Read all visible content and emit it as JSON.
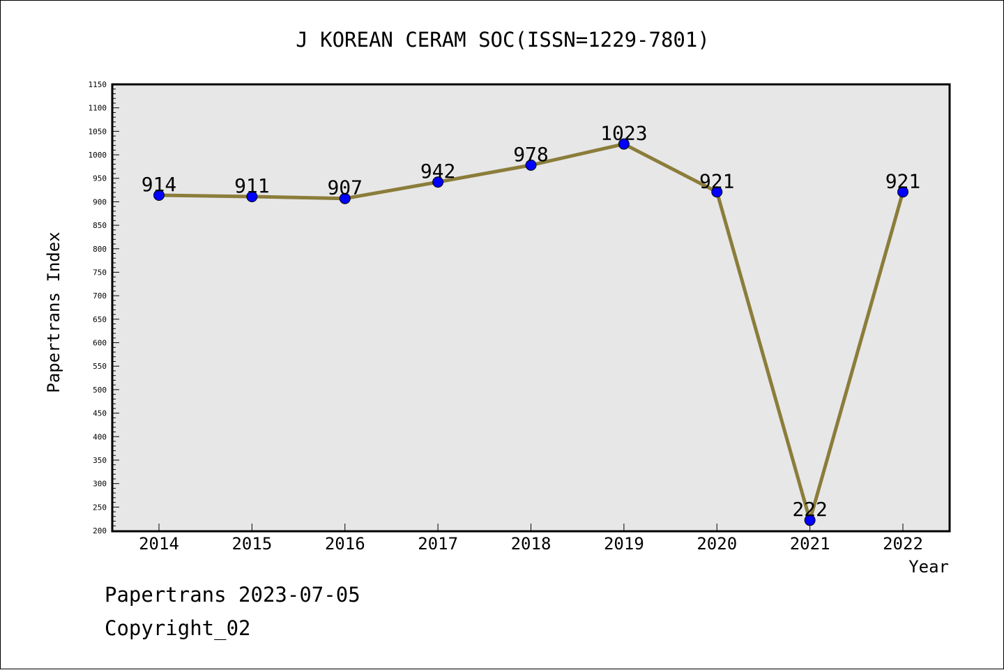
{
  "chart_data": {
    "type": "line",
    "title": "J KOREAN CERAM SOC(ISSN=1229-7801)",
    "xlabel": "Year",
    "ylabel": "Papertrans Index",
    "categories": [
      "2014",
      "2015",
      "2016",
      "2017",
      "2018",
      "2019",
      "2020",
      "2021",
      "2022"
    ],
    "values": [
      914,
      911,
      907,
      942,
      978,
      1023,
      921,
      222,
      921
    ],
    "data_labels": [
      "914",
      "911",
      "907",
      "942",
      "978",
      "1023",
      "921",
      "222",
      "921"
    ],
    "ylim": [
      200,
      1150
    ],
    "y_ticks": [
      200,
      250,
      300,
      350,
      400,
      450,
      500,
      550,
      600,
      650,
      700,
      750,
      800,
      850,
      900,
      950,
      1000,
      1050,
      1100,
      1150
    ],
    "y_tick_labels": [
      "200",
      "250",
      "300",
      "350",
      "400",
      "450",
      "500",
      "550",
      "600",
      "650",
      "700",
      "750",
      "800",
      "850",
      "900",
      "950",
      "1000",
      "1050",
      "1100",
      "1150"
    ],
    "grid": false,
    "colors": {
      "line": "#8b7d3a",
      "marker": "#0000ff",
      "plot_background": "#e7e7e7"
    }
  },
  "footer": {
    "brand": "Papertrans 2023-07-05",
    "copyright": "Copyright_02"
  }
}
